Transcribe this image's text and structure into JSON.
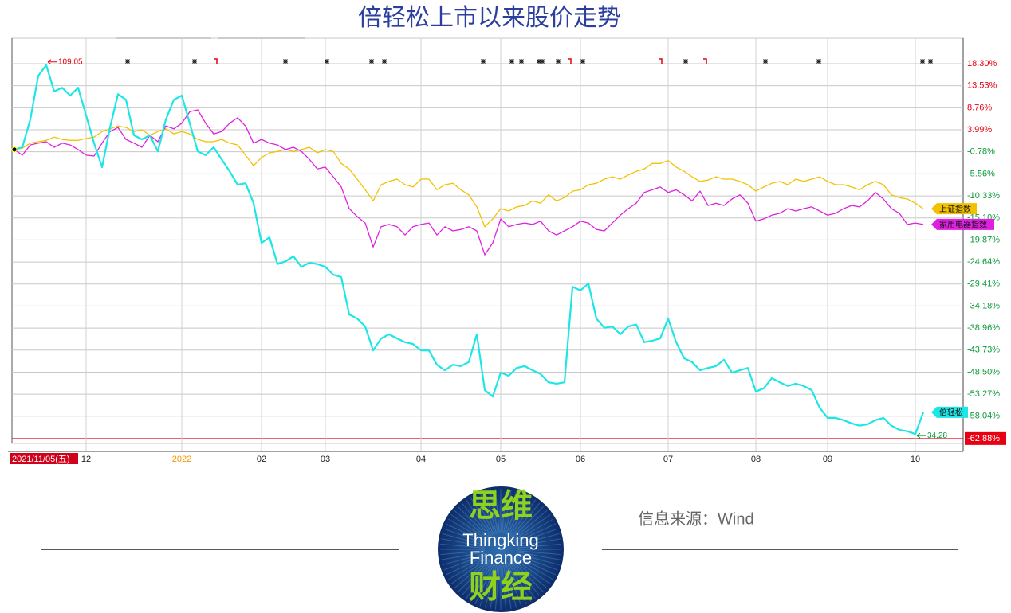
{
  "chart_data": {
    "type": "line",
    "title": "倍轻松上市以来股价走势",
    "categories": [
      "2021/11/05(五)",
      null,
      null,
      null,
      null,
      null,
      null,
      null,
      null,
      "12",
      null,
      null,
      null,
      null,
      null,
      null,
      null,
      null,
      null,
      null,
      null,
      "2022",
      null,
      null,
      null,
      null,
      null,
      null,
      null,
      null,
      null,
      "02",
      null,
      null,
      null,
      null,
      null,
      null,
      null,
      "03",
      null,
      null,
      null,
      null,
      null,
      null,
      null,
      null,
      null,
      null,
      null,
      "04",
      null,
      null,
      null,
      null,
      null,
      null,
      null,
      null,
      null,
      "05",
      null,
      null,
      null,
      null,
      null,
      null,
      null,
      null,
      null,
      "06",
      null,
      null,
      null,
      null,
      null,
      null,
      null,
      null,
      null,
      null,
      "07",
      null,
      null,
      null,
      null,
      null,
      null,
      null,
      null,
      null,
      null,
      "08",
      null,
      null,
      null,
      null,
      null,
      null,
      null,
      null,
      "09",
      null,
      null,
      null,
      null,
      null,
      null,
      null,
      null,
      null,
      null,
      "10",
      null
    ],
    "series": [
      {
        "name": "上证指数",
        "color": "#f2c200",
        "values": [
          -0.3,
          0.0,
          1.1,
          1.4,
          1.7,
          2.4,
          1.9,
          1.7,
          1.7,
          2.1,
          2.4,
          3.6,
          4.2,
          4.8,
          4.5,
          3.6,
          4.0,
          2.8,
          3.6,
          4.2,
          3.1,
          3.6,
          3.1,
          1.9,
          1.4,
          1.4,
          1.9,
          1.1,
          0.7,
          -1.5,
          -3.8,
          -2.0,
          -1.0,
          -0.7,
          -0.3,
          -0.7,
          -0.3,
          0.2,
          -1.0,
          -0.3,
          -0.7,
          -3.3,
          -4.5,
          -6.7,
          -9.0,
          -11.4,
          -7.9,
          -7.2,
          -6.7,
          -7.9,
          -8.4,
          -6.7,
          -6.7,
          -9.0,
          -7.9,
          -7.6,
          -9.0,
          -10.1,
          -12.7,
          -17.0,
          -15.3,
          -13.1,
          -13.6,
          -12.7,
          -12.4,
          -11.4,
          -11.9,
          -10.1,
          -11.4,
          -10.7,
          -9.3,
          -9.0,
          -7.9,
          -7.6,
          -6.7,
          -6.2,
          -6.7,
          -5.8,
          -5.0,
          -4.5,
          -3.3,
          -3.3,
          -2.7,
          -4.1,
          -5.0,
          -6.2,
          -7.2,
          -6.9,
          -6.2,
          -6.7,
          -6.7,
          -7.2,
          -7.9,
          -9.3,
          -8.4,
          -7.6,
          -7.2,
          -7.9,
          -6.7,
          -7.2,
          -6.7,
          -6.2,
          -7.2,
          -7.9,
          -7.9,
          -8.4,
          -9.0,
          -7.9,
          -7.2,
          -7.9,
          -10.1,
          -10.7,
          -11.0,
          -11.9,
          -13.1
        ]
      },
      {
        "name": "家用电器指数",
        "color": "#e020e0",
        "values": [
          -0.3,
          -1.5,
          0.7,
          1.1,
          1.4,
          0.2,
          1.1,
          0.7,
          -0.3,
          -1.5,
          -1.7,
          1.1,
          3.6,
          4.5,
          1.9,
          1.1,
          0.2,
          2.8,
          1.4,
          4.8,
          4.2,
          5.4,
          7.9,
          8.3,
          5.4,
          3.1,
          3.6,
          5.4,
          6.6,
          4.8,
          1.1,
          1.9,
          1.1,
          0.7,
          -0.3,
          0.2,
          -0.7,
          -2.4,
          -4.5,
          -4.1,
          -6.2,
          -8.4,
          -13.1,
          -14.8,
          -16.2,
          -21.4,
          -17.0,
          -16.5,
          -17.0,
          -18.8,
          -17.0,
          -16.5,
          -16.2,
          -18.8,
          -17.0,
          -17.9,
          -17.6,
          -17.0,
          -17.9,
          -23.1,
          -20.5,
          -15.3,
          -17.0,
          -16.5,
          -16.2,
          -16.5,
          -15.8,
          -17.9,
          -18.8,
          -17.9,
          -17.0,
          -15.8,
          -16.2,
          -17.6,
          -17.9,
          -16.2,
          -14.5,
          -13.1,
          -11.9,
          -9.6,
          -9.0,
          -8.4,
          -9.6,
          -9.0,
          -10.1,
          -11.4,
          -9.3,
          -12.4,
          -11.9,
          -12.4,
          -11.0,
          -10.1,
          -11.9,
          -15.8,
          -15.3,
          -14.5,
          -14.1,
          -13.1,
          -13.6,
          -13.1,
          -12.7,
          -13.6,
          -14.5,
          -14.1,
          -13.1,
          -12.4,
          -12.7,
          -11.4,
          -9.6,
          -11.0,
          -13.1,
          -14.1,
          -16.5,
          -16.2,
          -16.5
        ]
      },
      {
        "name": "倍轻松",
        "color": "#1de6e6",
        "values": [
          -0.3,
          0.2,
          6.2,
          15.7,
          18.0,
          12.3,
          13.1,
          11.4,
          13.1,
          7.1,
          1.1,
          -4.1,
          4.5,
          11.7,
          10.5,
          2.8,
          1.9,
          2.8,
          -0.7,
          6.2,
          10.5,
          11.4,
          5.4,
          -0.7,
          -1.5,
          0.2,
          -2.4,
          -5.0,
          -7.9,
          -7.6,
          -11.9,
          -20.5,
          -19.3,
          -25.1,
          -24.5,
          -23.4,
          -25.7,
          -24.8,
          -25.1,
          -25.7,
          -27.4,
          -27.9,
          -36.0,
          -36.9,
          -38.6,
          -43.8,
          -41.2,
          -40.3,
          -41.2,
          -42.0,
          -42.4,
          -43.8,
          -43.8,
          -46.9,
          -48.1,
          -46.9,
          -47.2,
          -46.3,
          -40.3,
          -52.4,
          -53.8,
          -48.6,
          -49.3,
          -47.6,
          -47.2,
          -48.1,
          -48.9,
          -50.7,
          -51.0,
          -50.7,
          -30.0,
          -30.8,
          -29.3,
          -36.9,
          -38.9,
          -38.6,
          -40.3,
          -38.6,
          -38.2,
          -42.0,
          -41.7,
          -41.2,
          -36.9,
          -42.0,
          -45.5,
          -46.3,
          -48.1,
          -47.6,
          -47.2,
          -45.8,
          -48.6,
          -48.1,
          -47.6,
          -52.7,
          -52.0,
          -49.8,
          -50.7,
          -51.5,
          -51.0,
          -51.5,
          -52.4,
          -56.2,
          -58.4,
          -58.4,
          -58.9,
          -59.6,
          -60.1,
          -59.8,
          -58.9,
          -58.4,
          -60.1,
          -61.0,
          -61.3,
          -61.9,
          -57.2
        ]
      }
    ],
    "ylim": [
      -63.94,
      23.82
    ],
    "yticks": [
      {
        "value": 18.3,
        "label": "18.30%"
      },
      {
        "value": 13.53,
        "label": "13.53%"
      },
      {
        "value": 8.76,
        "label": "8.76%"
      },
      {
        "value": 3.99,
        "label": "3.99%"
      },
      {
        "value": -0.78,
        "label": "-0.78%"
      },
      {
        "value": -5.56,
        "label": "-5.56%"
      },
      {
        "value": -10.33,
        "label": "-10.33%"
      },
      {
        "value": -15.1,
        "label": "-15.10%"
      },
      {
        "value": -19.87,
        "label": "-19.87%"
      },
      {
        "value": -24.64,
        "label": "-24.64%"
      },
      {
        "value": -29.41,
        "label": "-29.41%"
      },
      {
        "value": -34.18,
        "label": "-34.18%"
      },
      {
        "value": -38.96,
        "label": "-38.96%"
      },
      {
        "value": -43.73,
        "label": "-43.73%"
      },
      {
        "value": -48.5,
        "label": "-48.50%"
      },
      {
        "value": -53.27,
        "label": "-53.27%"
      },
      {
        "value": -58.04,
        "label": "-58.04%"
      },
      {
        "value": -62.88,
        "label": "-62.88%"
      }
    ],
    "grid": true,
    "positive_color": "#e60012",
    "negative_color": "#0a9a3a",
    "annotations": [
      {
        "text": "109.05",
        "color": "#e60012"
      },
      {
        "text": "34.28",
        "color": "#0a9a3a"
      }
    ]
  },
  "footer": {
    "logo_top": "思维",
    "logo_en1": "Thingking",
    "logo_en2": "Finance",
    "logo_bottom": "财经",
    "source": "信息来源：Wind"
  }
}
